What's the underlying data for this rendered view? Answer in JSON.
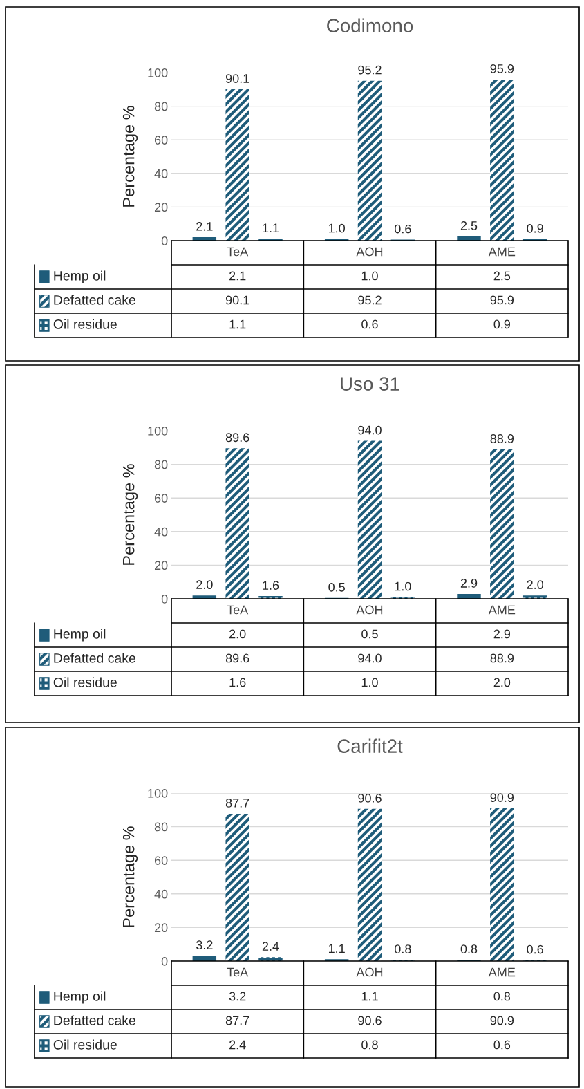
{
  "chart_data": [
    {
      "type": "bar",
      "title": "Codimono",
      "ylabel": "Percentage %",
      "categories": [
        "TeA",
        "AOH",
        "AME"
      ],
      "ylim": [
        0,
        100
      ],
      "yticks": [
        0,
        20,
        40,
        60,
        80,
        100
      ],
      "grid": "y",
      "legend": "bottom",
      "series": [
        {
          "name": "Hemp oil",
          "color": "#1f5c7a",
          "values": [
            2.1,
            1.0,
            2.5
          ],
          "value_labels": [
            "2.1",
            "1.0",
            "2.5"
          ]
        },
        {
          "name": "Defatted cake",
          "color": "#1f5c7a",
          "values": [
            90.1,
            95.2,
            95.9
          ],
          "value_labels": [
            "90.1",
            "95.2",
            "95.9"
          ]
        },
        {
          "name": "Oil residue",
          "color": "#1f5c7a",
          "values": [
            1.1,
            0.6,
            0.9
          ],
          "value_labels": [
            "1.1",
            "0.6",
            "0.9"
          ]
        }
      ]
    },
    {
      "type": "bar",
      "title": "Uso 31",
      "ylabel": "Percentage %",
      "categories": [
        "TeA",
        "AOH",
        "AME"
      ],
      "ylim": [
        0,
        100
      ],
      "yticks": [
        0,
        20,
        40,
        60,
        80,
        100
      ],
      "grid": "y",
      "legend": "bottom",
      "series": [
        {
          "name": "Hemp oil",
          "color": "#1f5c7a",
          "values": [
            2.0,
            0.5,
            2.9
          ],
          "value_labels": [
            "2.0",
            "0.5",
            "2.9"
          ]
        },
        {
          "name": "Defatted cake",
          "color": "#1f5c7a",
          "values": [
            89.6,
            94.0,
            88.9
          ],
          "value_labels": [
            "89.6",
            "94.0",
            "88.9"
          ]
        },
        {
          "name": "Oil residue",
          "color": "#1f5c7a",
          "values": [
            1.6,
            1.0,
            2.0
          ],
          "value_labels": [
            "1.6",
            "1.0",
            "2.0"
          ]
        }
      ]
    },
    {
      "type": "bar",
      "title": "Carifit2t",
      "ylabel": "Percentage %",
      "categories": [
        "TeA",
        "AOH",
        "AME"
      ],
      "ylim": [
        0,
        100
      ],
      "yticks": [
        0,
        20,
        40,
        60,
        80,
        100
      ],
      "grid": "y",
      "legend": "bottom",
      "series": [
        {
          "name": "Hemp oil",
          "color": "#1f5c7a",
          "values": [
            3.2,
            1.1,
            0.8
          ],
          "value_labels": [
            "3.2",
            "1.1",
            "0.8"
          ]
        },
        {
          "name": "Defatted cake",
          "color": "#1f5c7a",
          "values": [
            87.7,
            90.6,
            90.9
          ],
          "value_labels": [
            "87.7",
            "90.6",
            "90.9"
          ]
        },
        {
          "name": "Oil residue",
          "color": "#1f5c7a",
          "values": [
            2.4,
            0.8,
            0.6
          ],
          "value_labels": [
            "2.4",
            "0.8",
            "0.6"
          ]
        }
      ]
    }
  ]
}
